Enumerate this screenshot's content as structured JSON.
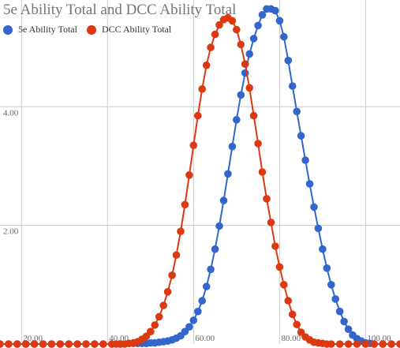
{
  "chart_data": {
    "type": "line",
    "title": "5e Ability Total and DCC Ability Total",
    "xlabel": "",
    "ylabel": "",
    "xlim": [
      15,
      108
    ],
    "ylim": [
      0,
      5.8
    ],
    "x_ticks": [
      "20.00",
      "40.00",
      "60.00",
      "80.00",
      "100.00"
    ],
    "y_ticks": [
      "2.00",
      "4.00"
    ],
    "grid": true,
    "legend_position": "top-left",
    "series": [
      {
        "name": "5e Ability Total",
        "color": "#3366cc",
        "points": [
          [
            15,
            0
          ],
          [
            17,
            0
          ],
          [
            19,
            0
          ],
          [
            21,
            0
          ],
          [
            23,
            0
          ],
          [
            25,
            0
          ],
          [
            27,
            0
          ],
          [
            29,
            0
          ],
          [
            31,
            0
          ],
          [
            33,
            0
          ],
          [
            35,
            0
          ],
          [
            37,
            0
          ],
          [
            39,
            0
          ],
          [
            41,
            0
          ],
          [
            43,
            0
          ],
          [
            45,
            0.01
          ],
          [
            46,
            0.01
          ],
          [
            47,
            0.01
          ],
          [
            48,
            0.01
          ],
          [
            49,
            0.01
          ],
          [
            50,
            0.02
          ],
          [
            51,
            0.02
          ],
          [
            52,
            0.03
          ],
          [
            53,
            0.04
          ],
          [
            54,
            0.05
          ],
          [
            55,
            0.07
          ],
          [
            56,
            0.1
          ],
          [
            57,
            0.14
          ],
          [
            58,
            0.21
          ],
          [
            59,
            0.29
          ],
          [
            60,
            0.4
          ],
          [
            61,
            0.55
          ],
          [
            62,
            0.73
          ],
          [
            63,
            0.97
          ],
          [
            64,
            1.26
          ],
          [
            65,
            1.6
          ],
          [
            66,
            1.99
          ],
          [
            67,
            2.42
          ],
          [
            68,
            2.87
          ],
          [
            69,
            3.33
          ],
          [
            70,
            3.78
          ],
          [
            71,
            4.2
          ],
          [
            72,
            4.57
          ],
          [
            73,
            4.89
          ],
          [
            74,
            5.15
          ],
          [
            75,
            5.37
          ],
          [
            76,
            5.55
          ],
          [
            77,
            5.65
          ],
          [
            78,
            5.65
          ],
          [
            79,
            5.62
          ],
          [
            80,
            5.45
          ],
          [
            81,
            5.18
          ],
          [
            82,
            4.78
          ],
          [
            83,
            4.35
          ],
          [
            84,
            3.92
          ],
          [
            85,
            3.51
          ],
          [
            86,
            3.1
          ],
          [
            87,
            2.7
          ],
          [
            88,
            2.31
          ],
          [
            89,
            1.95
          ],
          [
            90,
            1.6
          ],
          [
            91,
            1.28
          ],
          [
            92,
            1.0
          ],
          [
            93,
            0.76
          ],
          [
            94,
            0.55
          ],
          [
            95,
            0.38
          ],
          [
            96,
            0.25
          ],
          [
            97,
            0.15
          ],
          [
            98,
            0.09
          ],
          [
            99,
            0.05
          ],
          [
            100,
            0.02
          ],
          [
            101,
            0.01
          ],
          [
            102,
            0
          ],
          [
            104,
            0
          ],
          [
            106,
            0
          ],
          [
            108,
            0
          ]
        ]
      },
      {
        "name": "DCC Ability Total",
        "color": "#dc3912",
        "points": [
          [
            15,
            0
          ],
          [
            17,
            0
          ],
          [
            19,
            0
          ],
          [
            21,
            0
          ],
          [
            23,
            0
          ],
          [
            25,
            0
          ],
          [
            27,
            0
          ],
          [
            29,
            0
          ],
          [
            31,
            0
          ],
          [
            33,
            0
          ],
          [
            35,
            0
          ],
          [
            37,
            0
          ],
          [
            39,
            0
          ],
          [
            41,
            0
          ],
          [
            42,
            0
          ],
          [
            43,
            0
          ],
          [
            44,
            0
          ],
          [
            45,
            0.01
          ],
          [
            46,
            0.02
          ],
          [
            47,
            0.04
          ],
          [
            48,
            0.08
          ],
          [
            49,
            0.13
          ],
          [
            50,
            0.21
          ],
          [
            51,
            0.32
          ],
          [
            52,
            0.46
          ],
          [
            53,
            0.65
          ],
          [
            54,
            0.88
          ],
          [
            55,
            1.16
          ],
          [
            56,
            1.5
          ],
          [
            57,
            1.9
          ],
          [
            58,
            2.35
          ],
          [
            59,
            2.85
          ],
          [
            60,
            3.35
          ],
          [
            61,
            3.85
          ],
          [
            62,
            4.3
          ],
          [
            63,
            4.7
          ],
          [
            64,
            5.0
          ],
          [
            65,
            5.22
          ],
          [
            66,
            5.38
          ],
          [
            67,
            5.47
          ],
          [
            68,
            5.5
          ],
          [
            69,
            5.45
          ],
          [
            70,
            5.3
          ],
          [
            71,
            5.05
          ],
          [
            72,
            4.72
          ],
          [
            73,
            4.32
          ],
          [
            74,
            3.85
          ],
          [
            75,
            3.38
          ],
          [
            76,
            2.9
          ],
          [
            77,
            2.45
          ],
          [
            78,
            2.05
          ],
          [
            79,
            1.65
          ],
          [
            80,
            1.3
          ],
          [
            81,
            1.0
          ],
          [
            82,
            0.73
          ],
          [
            83,
            0.5
          ],
          [
            84,
            0.33
          ],
          [
            85,
            0.2
          ],
          [
            86,
            0.12
          ],
          [
            87,
            0.07
          ],
          [
            88,
            0.03
          ],
          [
            89,
            0.02
          ],
          [
            90,
            0.01
          ],
          [
            91,
            0
          ],
          [
            92,
            0
          ],
          [
            94,
            0
          ],
          [
            96,
            0
          ],
          [
            98,
            0
          ],
          [
            100,
            0
          ],
          [
            102,
            0
          ],
          [
            104,
            0
          ],
          [
            106,
            0
          ],
          [
            108,
            0
          ]
        ]
      }
    ]
  }
}
